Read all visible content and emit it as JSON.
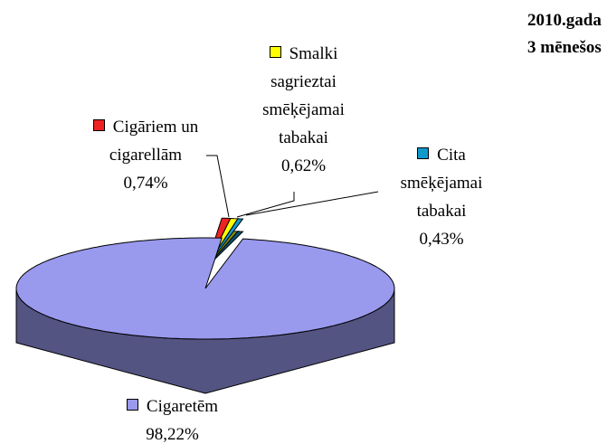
{
  "chart_data": {
    "type": "pie3d",
    "title": [
      "2010.gada",
      "3 mēnešos"
    ],
    "categories": [
      "Cigāriem un cigarellām",
      "Smalki sagrieztai smēķējamai tabakai",
      "Cita smēķējamai tabakai",
      "Cigaretēm"
    ],
    "values": [
      0.74,
      0.62,
      0.43,
      98.22
    ],
    "value_labels": [
      "0,74%",
      "0,62%",
      "0,43%",
      "98,22%"
    ],
    "colors": [
      "#ee2222",
      "#ffff00",
      "#1199cc",
      "#9999ee"
    ]
  }
}
